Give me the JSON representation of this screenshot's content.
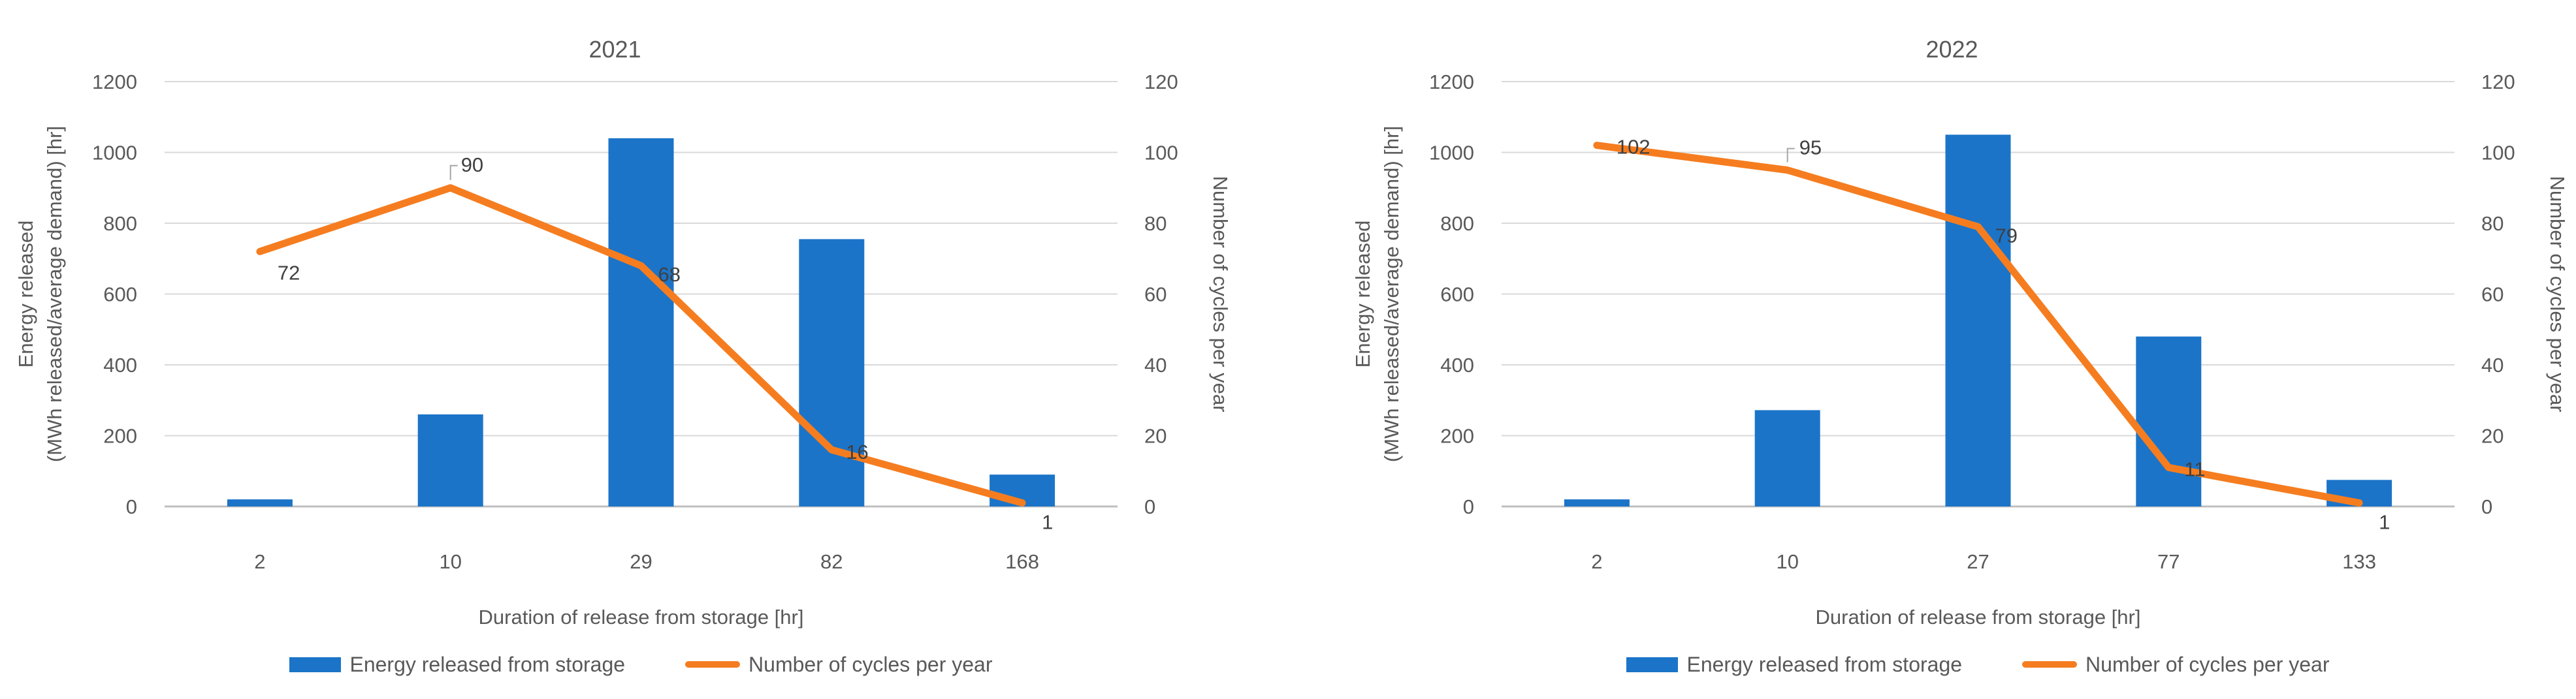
{
  "figure": {
    "background": "#ffffff",
    "colors": {
      "bar": "#1B74C8",
      "line": "#F57D20",
      "grid": "#D9D9D9",
      "axis_line": "#BFBFBF",
      "axis_text": "#595959",
      "data_label_text": "#404040",
      "leader_line": "#A6A6A6"
    }
  },
  "chart_data": [
    {
      "type": "bar",
      "subtype": "combo-bar-line",
      "title": "2021",
      "categories": [
        "2",
        "10",
        "29",
        "82",
        "168"
      ],
      "xlabel": "Duration of release from storage [hr]",
      "ylabel_left": [
        "Energy released",
        "(MWh released/average demand) [hr]"
      ],
      "ylabel_right": "Number of cycles per year",
      "ylim_left": [
        0,
        1200
      ],
      "ylim_right": [
        0,
        120
      ],
      "yticks_left": [
        0,
        200,
        400,
        600,
        800,
        1000,
        1200
      ],
      "yticks_right": [
        0,
        20,
        40,
        60,
        80,
        100,
        120
      ],
      "grid": true,
      "legend_position": "bottom",
      "series": [
        {
          "name": "Energy released from storage",
          "type": "bar",
          "axis": "left",
          "values": [
            20,
            260,
            1040,
            755,
            90
          ]
        },
        {
          "name": "Number of cycles per year",
          "type": "line",
          "axis": "right",
          "values": [
            72,
            90,
            68,
            16,
            1
          ],
          "data_labels": [
            "72",
            "90",
            "68",
            "16",
            "1"
          ]
        }
      ]
    },
    {
      "type": "bar",
      "subtype": "combo-bar-line",
      "title": "2022",
      "categories": [
        "2",
        "10",
        "27",
        "77",
        "133"
      ],
      "xlabel": "Duration of release from storage [hr]",
      "ylabel_left": [
        "Energy released",
        "(MWh released/average demand) [hr]"
      ],
      "ylabel_right": "Number of cycles per year",
      "ylim_left": [
        0,
        1200
      ],
      "ylim_right": [
        0,
        120
      ],
      "yticks_left": [
        0,
        200,
        400,
        600,
        800,
        1000,
        1200
      ],
      "yticks_right": [
        0,
        20,
        40,
        60,
        80,
        100,
        120
      ],
      "grid": true,
      "legend_position": "bottom",
      "series": [
        {
          "name": "Energy released from storage",
          "type": "bar",
          "axis": "left",
          "values": [
            20,
            272,
            1050,
            480,
            75
          ]
        },
        {
          "name": "Number of cycles per year",
          "type": "line",
          "axis": "right",
          "values": [
            102,
            95,
            79,
            11,
            1
          ],
          "data_labels": [
            "102",
            "95",
            "79",
            "11",
            "1"
          ]
        }
      ]
    }
  ]
}
